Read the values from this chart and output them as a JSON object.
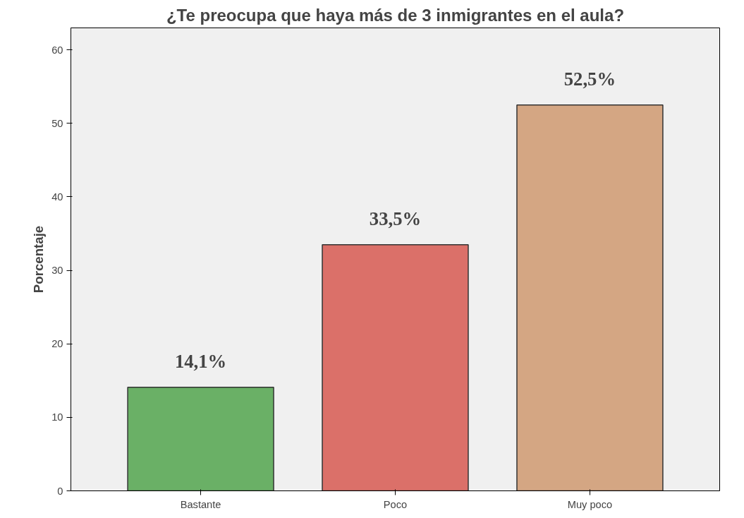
{
  "chart_data": {
    "type": "bar",
    "title": "¿Te preocupa que haya más de 3 inmigrantes en el aula?",
    "ylabel": "Porcentaje",
    "categories": [
      "Bastante",
      "Poco",
      "Muy poco"
    ],
    "values": [
      14.1,
      33.5,
      52.5
    ],
    "colors": [
      "#6ab066",
      "#db7069",
      "#d4a683"
    ],
    "value_labels": [
      "14,1%",
      "33,5%",
      "52,5%"
    ],
    "ylim": [
      0,
      63
    ],
    "yticks": [
      0,
      10,
      20,
      30,
      40,
      50,
      60
    ],
    "grid": false
  }
}
